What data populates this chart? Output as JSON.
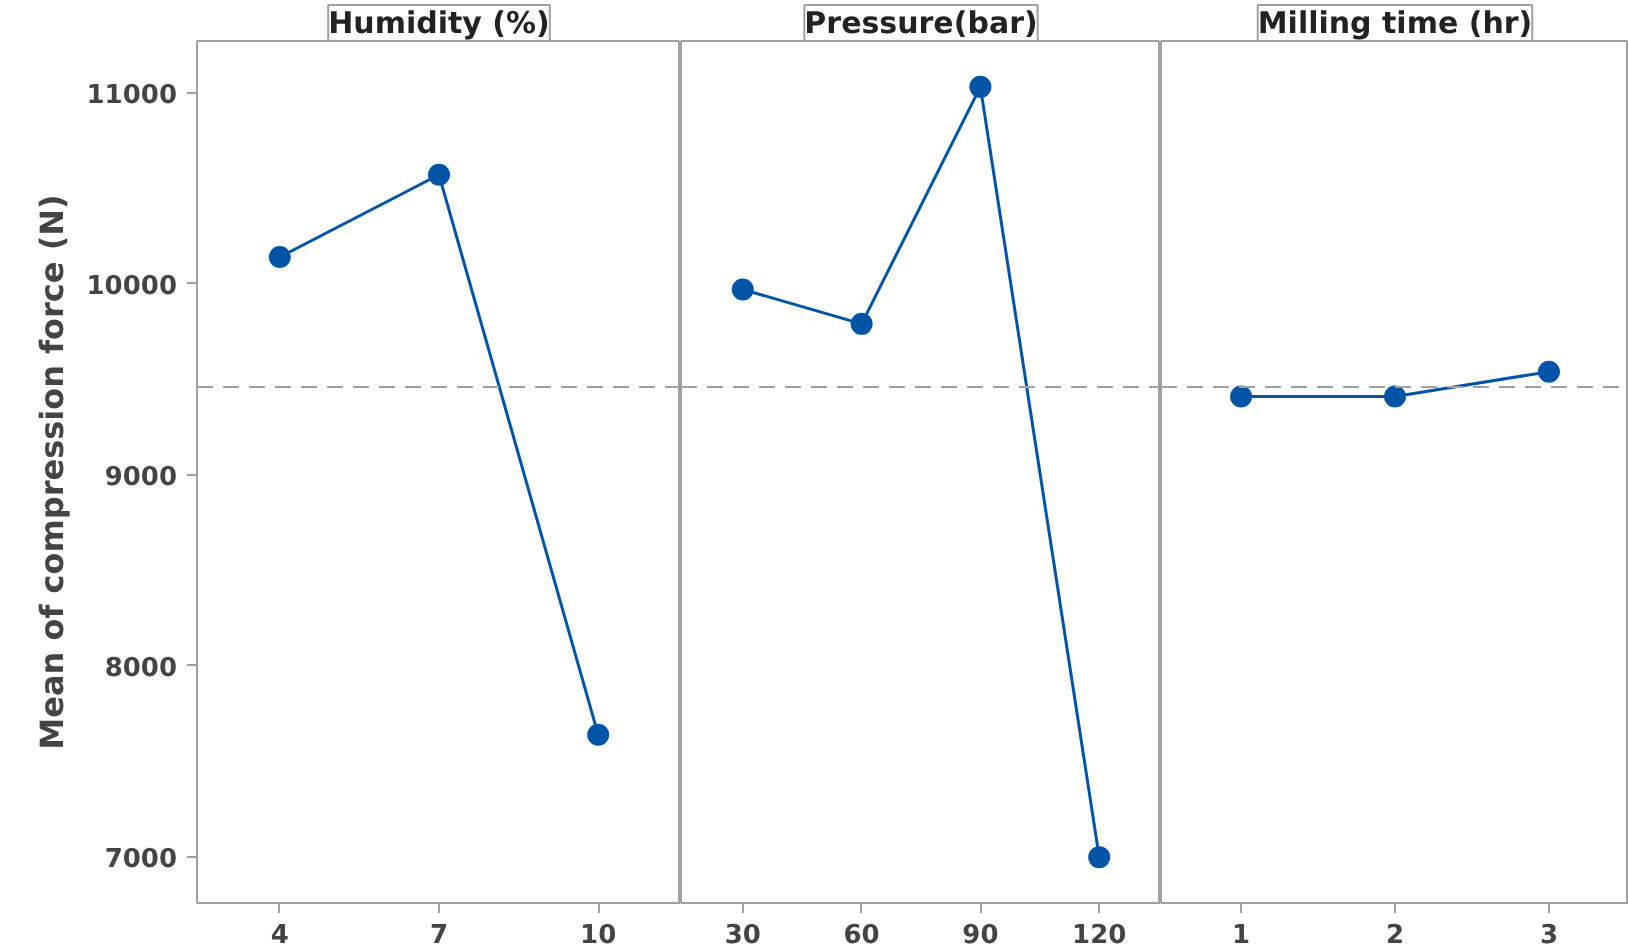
{
  "chart_data": [
    {
      "type": "line",
      "title": "Humidity (%)",
      "ylabel": "Mean of compression force (N)",
      "categories": [
        "4",
        "7",
        "10"
      ],
      "values": [
        10140,
        10570,
        7640
      ],
      "color": "#0054a6",
      "marker": "circle",
      "ylim": [
        6760,
        11270
      ],
      "yticks": [
        7000,
        8000,
        9000,
        10000,
        11000
      ],
      "grid": false,
      "ref_lines": [
        {
          "axis": "y",
          "value": 9460,
          "color": "#a0a0a0",
          "line_style": "dashed"
        }
      ]
    },
    {
      "type": "line",
      "title": "Pressure(bar)",
      "categories": [
        "30",
        "60",
        "90",
        "120"
      ],
      "values": [
        9970,
        9790,
        11030,
        7000
      ],
      "color": "#0054a6",
      "marker": "circle",
      "ylim": [
        6760,
        11270
      ],
      "yticks": [
        7000,
        8000,
        9000,
        10000,
        11000
      ],
      "tick_labels": "x",
      "grid": false,
      "ref_lines": [
        {
          "axis": "y",
          "value": 9460,
          "color": "#a0a0a0",
          "line_style": "dashed"
        }
      ]
    },
    {
      "type": "line",
      "title": "Milling time (hr)",
      "categories": [
        "1",
        "2",
        "3"
      ],
      "values": [
        9410,
        9410,
        9540
      ],
      "color": "#0054a6",
      "marker": "circle",
      "ylim": [
        6760,
        11270
      ],
      "yticks": [
        7000,
        8000,
        9000,
        10000,
        11000
      ],
      "tick_labels": "x",
      "grid": false,
      "ref_lines": [
        {
          "axis": "y",
          "value": 9460,
          "color": "#a0a0a0",
          "line_style": "dashed"
        }
      ]
    }
  ]
}
